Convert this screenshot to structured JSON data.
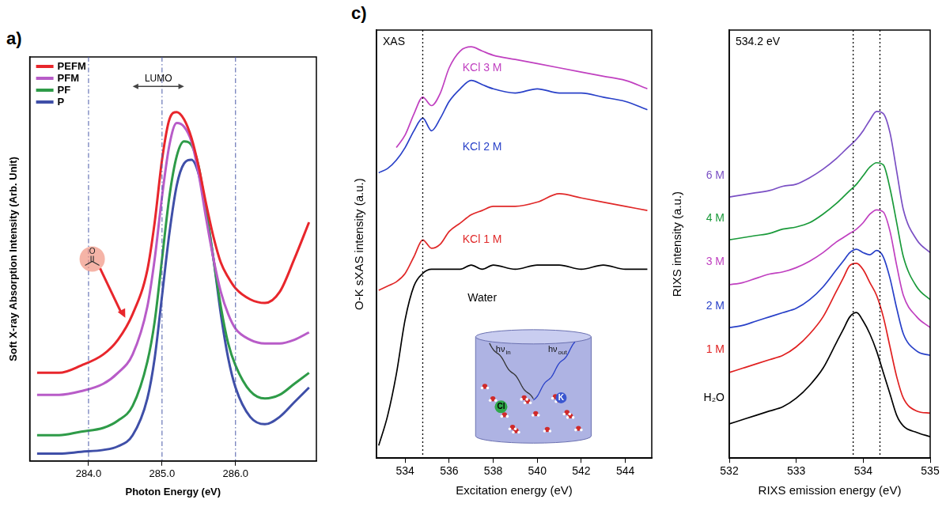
{
  "chart_data": [
    {
      "type": "line",
      "panel": "a)",
      "x_label": "Photon Energy (eV)",
      "y_label": "Soft X-ray Absorption Intensity (Arb. Unit)",
      "x": [
        283.3,
        283.6,
        283.9,
        284.2,
        284.4,
        284.6,
        284.8,
        284.9,
        285.0,
        285.1,
        285.2,
        285.3,
        285.4,
        285.5,
        285.6,
        285.7,
        285.8,
        285.9,
        286.0,
        286.2,
        286.4,
        286.6,
        286.8,
        287.0
      ],
      "series": [
        {
          "name": "PEFM",
          "color": "#e8262c",
          "values": [
            24,
            24,
            26,
            29,
            33,
            40,
            52,
            65,
            82,
            93,
            95,
            93,
            88,
            80,
            70,
            61,
            54,
            50,
            47,
            44,
            43,
            46,
            55,
            65
          ]
        },
        {
          "name": "PFM",
          "color": "#b85cc8",
          "values": [
            18,
            18,
            19,
            21,
            24,
            29,
            42,
            55,
            72,
            86,
            92,
            91,
            87,
            78,
            66,
            55,
            46,
            40,
            36,
            33,
            32,
            32,
            33,
            35
          ]
        },
        {
          "name": "PF",
          "color": "#2e9b48",
          "values": [
            7,
            7,
            8,
            9,
            11,
            15,
            27,
            38,
            55,
            72,
            83,
            87,
            86,
            80,
            68,
            55,
            42,
            32,
            26,
            19,
            17,
            18,
            21,
            24
          ]
        },
        {
          "name": "P",
          "color": "#3f4fa8",
          "values": [
            2,
            2,
            2.5,
            3,
            4,
            7,
            17,
            28,
            45,
            62,
            75,
            81,
            82,
            78,
            68,
            55,
            40,
            28,
            20,
            12,
            10,
            12,
            16,
            20
          ]
        }
      ],
      "xlim": [
        283.2,
        287.1
      ],
      "xticks": [
        {
          "value": 284,
          "label": "284.0"
        },
        {
          "value": 285,
          "label": "285.0"
        },
        {
          "value": 286,
          "label": "286.0"
        }
      ],
      "ylim": [
        0,
        110
      ],
      "grid": true,
      "legend": "upper left",
      "tick_labels": "x",
      "annotations": [
        {
          "text": "LUMO",
          "span": [
            284.6,
            285.3
          ],
          "y": 102
        },
        {
          "text": "O",
          "x": 284.05,
          "y": 55,
          "arrow_to": [
            284.5,
            39
          ]
        }
      ]
    },
    {
      "type": "line",
      "panel": "c)",
      "title": "XAS",
      "x_label": "Excitation energy (eV)",
      "y_label": "O-K sXAS intensity (a.u.)",
      "x": [
        532.8,
        533.2,
        533.6,
        534.0,
        534.4,
        534.8,
        535.2,
        535.6,
        536.0,
        536.5,
        537,
        537.5,
        538,
        539,
        540,
        541,
        542,
        543,
        544,
        545
      ],
      "series": [
        {
          "name": "Water",
          "color": "#000000",
          "values": [
            3,
            10,
            20,
            33,
            41,
            44,
            45,
            45,
            45,
            45,
            46,
            45,
            46,
            45,
            46,
            46,
            45,
            46,
            45,
            45
          ]
        },
        {
          "name": "KCl 1 M",
          "color": "#e02828",
          "values": [
            40,
            41,
            42,
            44,
            48,
            52,
            50,
            51,
            54,
            56,
            58,
            59,
            60,
            60,
            61,
            63,
            62,
            61,
            60,
            59
          ]
        },
        {
          "name": "KCl 2 M",
          "color": "#2840c8",
          "values": [
            68,
            69,
            71,
            74,
            78,
            81,
            78,
            81,
            85,
            88,
            90,
            89,
            88,
            87,
            88,
            87,
            87,
            86,
            85,
            83
          ]
        },
        {
          "name": "KCl 3 M",
          "color": "#c040c0",
          "values": [
            null,
            null,
            74,
            77,
            82,
            86,
            84,
            87,
            93,
            97,
            98,
            97,
            96,
            95,
            94,
            93,
            92,
            91,
            90,
            88
          ]
        }
      ],
      "xlim": [
        532.7,
        545.2
      ],
      "xticks": [
        534,
        536,
        538,
        540,
        542,
        544
      ],
      "ylim": [
        0,
        102
      ],
      "grid": false,
      "tick_labels": "x",
      "vlines": [
        534.8
      ],
      "inset_labels": [
        {
          "text": "hν",
          "sub": "in"
        },
        {
          "text": "hν",
          "sub": "out"
        },
        {
          "text": "Cl"
        },
        {
          "text": "K"
        }
      ]
    },
    {
      "type": "line",
      "title": "534.2 eV",
      "x_label": "RIXS emission energy (eV)",
      "y_label": "RIXS intensity (a.u.)",
      "x": [
        532.0,
        532.2,
        532.4,
        532.6,
        532.8,
        533.0,
        533.2,
        533.4,
        533.6,
        533.7,
        533.8,
        533.9,
        534.0,
        534.1,
        534.2,
        534.3,
        534.4,
        534.5,
        534.6,
        534.8,
        535.0
      ],
      "series": [
        {
          "name": "H₂O",
          "color": "#000000",
          "values": [
            8,
            9,
            10,
            11,
            12,
            14,
            17,
            21,
            27,
            30,
            33,
            34,
            32,
            29,
            25,
            20,
            15,
            10,
            7.5,
            6,
            5
          ]
        },
        {
          "name": "1 M",
          "color": "#e02020",
          "values": [
            20,
            21,
            22,
            23,
            24,
            26,
            29,
            33,
            39,
            42,
            45,
            45.5,
            44,
            41,
            38,
            33,
            26,
            19,
            14,
            11,
            10.5
          ]
        },
        {
          "name": "2 M",
          "color": "#2840c8",
          "values": [
            30.5,
            31,
            32,
            33,
            34,
            35,
            37,
            40,
            44,
            46,
            48,
            48.8,
            48,
            47.5,
            48.5,
            47,
            42,
            35,
            29,
            25,
            24
          ]
        },
        {
          "name": "3 M",
          "color": "#c040c0",
          "values": [
            40.5,
            41,
            42,
            43,
            43.5,
            44.5,
            46,
            48,
            50.5,
            51.5,
            52.5,
            53.5,
            55,
            57,
            58,
            57.5,
            53,
            45,
            38,
            33,
            30.5
          ]
        },
        {
          "name": "4 M",
          "color": "#1a9a3a",
          "values": [
            51,
            51.5,
            52,
            52.5,
            53.5,
            54,
            55,
            57,
            59.5,
            61,
            62.5,
            64,
            66,
            68,
            69,
            68.5,
            63,
            55,
            47,
            40,
            37
          ]
        },
        {
          "name": "6 M",
          "color": "#7a4fc4",
          "values": [
            61,
            61.5,
            62,
            62.5,
            63.5,
            64,
            65.5,
            67.5,
            70,
            71.5,
            73,
            74.5,
            76.5,
            79,
            81,
            80.5,
            76,
            67,
            58,
            51,
            48
          ]
        }
      ],
      "xlim": [
        532,
        535
      ],
      "xticks": [
        532,
        533,
        534,
        535
      ],
      "ylim": [
        0,
        100
      ],
      "grid": false,
      "tick_labels": "x",
      "vlines": [
        533.85,
        534.25
      ]
    }
  ]
}
